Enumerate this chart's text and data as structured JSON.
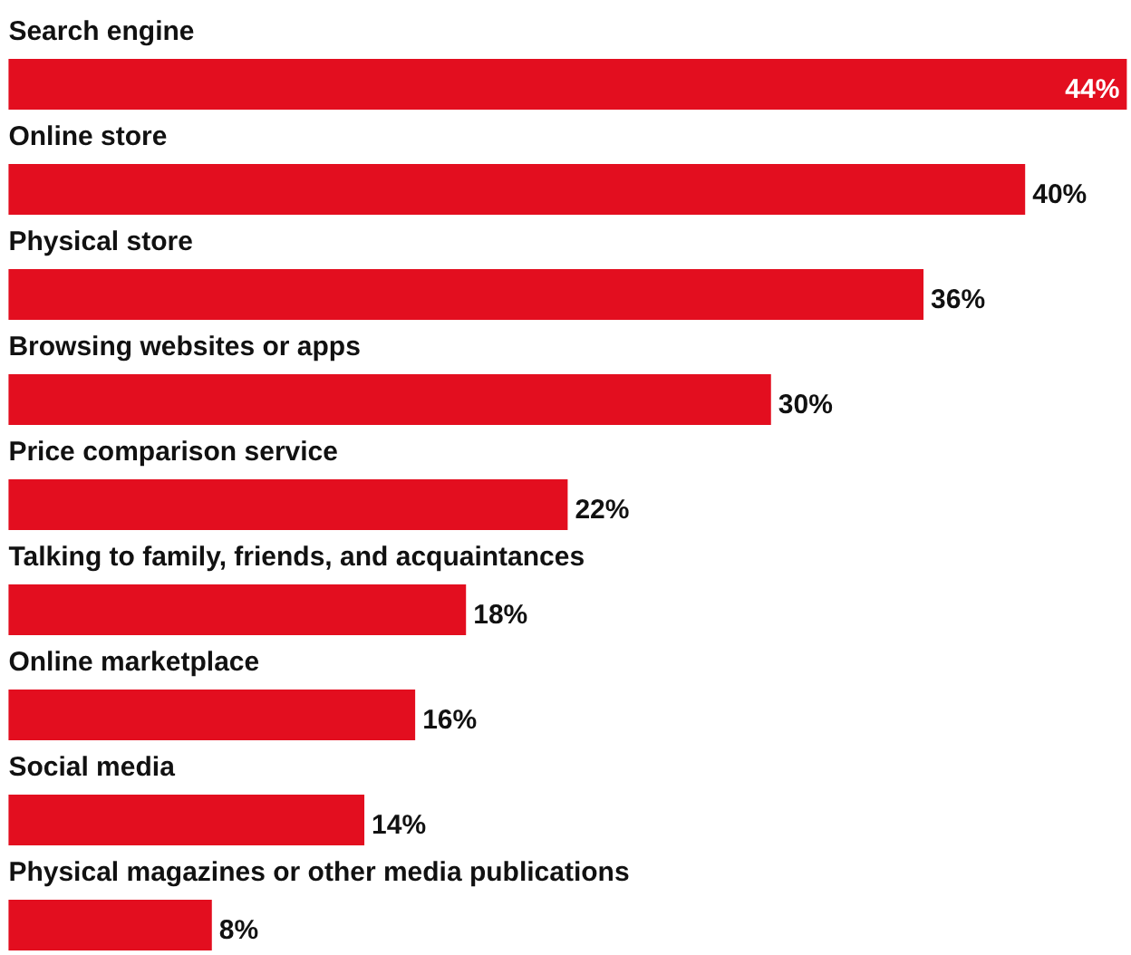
{
  "chart_data": {
    "type": "bar",
    "orientation": "horizontal",
    "categories": [
      "Search engine",
      "Online store",
      "Physical store",
      "Browsing websites or apps",
      "Price comparison service",
      "Talking to family, friends, and acquaintances",
      "Online marketplace",
      "Social media",
      "Physical magazines or other media publications"
    ],
    "values": [
      44,
      40,
      36,
      30,
      22,
      18,
      16,
      14,
      8
    ],
    "value_labels": [
      "44%",
      "40%",
      "36%",
      "30%",
      "22%",
      "18%",
      "16%",
      "14%",
      "8%"
    ],
    "color": "#e30e1f",
    "grid": false
  }
}
